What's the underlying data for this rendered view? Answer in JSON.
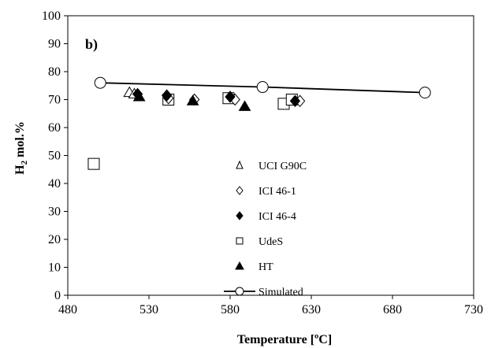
{
  "chart_data": {
    "type": "scatter",
    "panel_label": "b)",
    "title": "",
    "xlabel": "Temperature [ºC]",
    "ylabel_main": "H",
    "ylabel_sub": "2",
    "ylabel_rest": " mol.%",
    "xlim": [
      480,
      730
    ],
    "ylim": [
      0,
      100
    ],
    "x_ticks": [
      480,
      530,
      580,
      630,
      680,
      730
    ],
    "y_ticks": [
      0,
      10,
      20,
      30,
      40,
      50,
      60,
      70,
      80,
      90,
      100
    ],
    "grid": false,
    "legend_position": "center",
    "series": [
      {
        "name": "UCI G90C",
        "marker": "open-triangle",
        "points": [
          [
            518,
            72.5
          ],
          [
            521,
            72.0
          ]
        ]
      },
      {
        "name": "ICI 46-1",
        "marker": "open-diamond",
        "points": [
          [
            542,
            70.5
          ],
          [
            558,
            70.0
          ],
          [
            583,
            70.0
          ],
          [
            623,
            69.5
          ]
        ]
      },
      {
        "name": "ICI 46-4",
        "marker": "filled-diamond",
        "points": [
          [
            523,
            72.0
          ],
          [
            541,
            71.5
          ],
          [
            580,
            71.0
          ],
          [
            620,
            69.5
          ]
        ]
      },
      {
        "name": "UdeS",
        "marker": "open-square",
        "points": [
          [
            496,
            47.0
          ],
          [
            542,
            70.0
          ],
          [
            579,
            70.5
          ],
          [
            613,
            68.5
          ],
          [
            618,
            70.0
          ]
        ]
      },
      {
        "name": "HT",
        "marker": "filled-triangle",
        "points": [
          [
            524,
            71.0
          ],
          [
            557,
            69.5
          ],
          [
            589,
            67.5
          ]
        ]
      },
      {
        "name": "Simulated",
        "marker": "open-circle-line",
        "points": [
          [
            500,
            76.0
          ],
          [
            600,
            74.5
          ],
          [
            700,
            72.5
          ]
        ]
      }
    ]
  }
}
